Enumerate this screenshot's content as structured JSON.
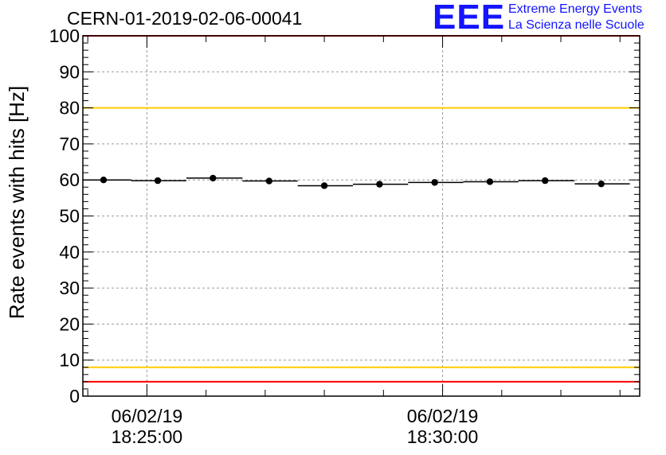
{
  "header": {
    "run_id": "CERN-01-2019-02-06-00041",
    "logo_text": "EEE",
    "logo_line1": "Extreme Energy Events",
    "logo_line2": "La Scienza nelle Scuole",
    "brand_color": "#1414ff"
  },
  "chart_data": {
    "type": "scatter",
    "title": "CERN-01-2019-02-06-00041",
    "xlabel": "",
    "ylabel": "Rate events with hits [Hz]",
    "ylim": [
      0,
      100
    ],
    "xlim": [
      "18:23:55",
      "18:33:20"
    ],
    "yticks_major": [
      0,
      10,
      20,
      30,
      40,
      50,
      60,
      70,
      80,
      90,
      100
    ],
    "xtick_labels": [
      {
        "date": "06/02/19",
        "time": "18:25:00"
      },
      {
        "date": "06/02/19",
        "time": "18:30:00"
      }
    ],
    "grid": true,
    "series": [
      {
        "x": [
          "18:24:16",
          "18:25:11",
          "18:26:07",
          "18:27:04",
          "18:28:00",
          "18:28:56",
          "18:29:52",
          "18:30:48",
          "18:31:44",
          "18:32:41"
        ],
        "x_bin_start": [
          "18:23:48",
          "18:24:44",
          "18:25:40",
          "18:26:37",
          "18:27:33",
          "18:28:29",
          "18:29:25",
          "18:30:21",
          "18:31:17",
          "18:32:14"
        ],
        "x_bin_end": [
          "18:24:44",
          "18:25:40",
          "18:26:37",
          "18:27:33",
          "18:28:29",
          "18:29:25",
          "18:30:21",
          "18:31:17",
          "18:32:14",
          "18:33:10"
        ],
        "values": [
          60.0,
          59.8,
          60.5,
          59.7,
          58.4,
          58.8,
          59.3,
          59.5,
          59.8,
          58.9
        ],
        "color": "#000000"
      }
    ],
    "reference_lines": [
      {
        "y": 100,
        "color": "#ff0000"
      },
      {
        "y": 80,
        "color": "#ffcc00"
      },
      {
        "y": 8,
        "color": "#ffcc00"
      },
      {
        "y": 4,
        "color": "#ff0000"
      }
    ]
  }
}
